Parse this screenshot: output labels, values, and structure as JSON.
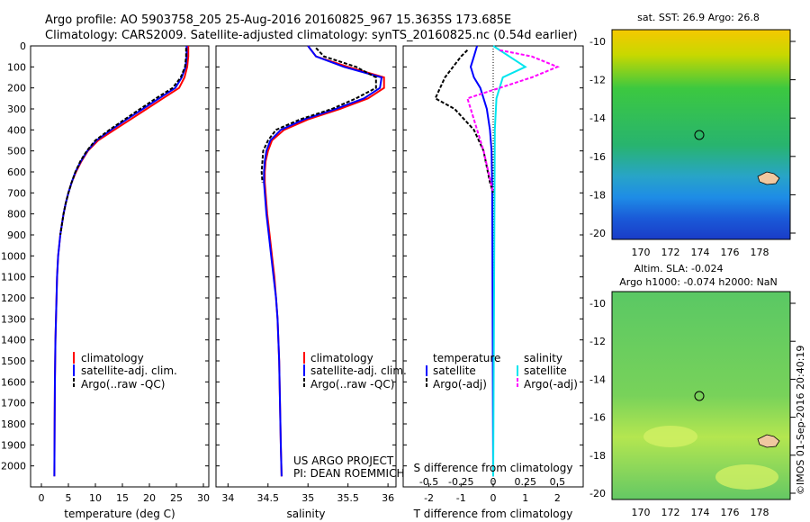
{
  "header": {
    "line1": "Argo profile: AO 5903758_205 25-Aug-2016 20160825_967 15.3635S 173.685E",
    "line2": "Climatology: CARS2009. Satellite-adjusted climatology: synTS_20160825.nc (0.54d earlier)"
  },
  "panels": {
    "temperature": {
      "xlabel": "temperature (deg C)",
      "xticks": [
        "0",
        "5",
        "10",
        "15",
        "20",
        "25",
        "30"
      ],
      "legend": [
        "climatology",
        "satellite-adj. clim.",
        "Argo(..raw -QC)"
      ]
    },
    "salinity": {
      "xlabel": "salinity",
      "xticks": [
        "34",
        "34.5",
        "35",
        "35.5",
        "36"
      ],
      "legend": [
        "climatology",
        "satellite-adj. clim.",
        "Argo(..raw -QC)"
      ],
      "note1": "US ARGO PROJECT",
      "note2": "PI: DEAN ROEMMICH"
    },
    "difference": {
      "xlabel": "T difference from climatology",
      "xlabel_top": "S difference from climatology",
      "xticks_T": [
        "-2",
        "-1",
        "0",
        "1",
        "2"
      ],
      "xticks_S": [
        "-0.5",
        "-0.25",
        "0",
        "0.25",
        "0.5"
      ],
      "legend_t_title": "temperature",
      "legend_s_title": "salinity",
      "legend_t": [
        "satellite",
        "Argo(-adj)"
      ],
      "legend_s": [
        "satellite",
        "Argo(-adj)"
      ]
    },
    "sst_map": {
      "title": "sat. SST: 26.9 Argo: 26.8",
      "yticks": [
        "-10",
        "-12",
        "-14",
        "-16",
        "-18",
        "-20"
      ],
      "xticks": [
        "170",
        "172",
        "174",
        "176",
        "178"
      ]
    },
    "sla_map": {
      "title1": "Altim. SLA: -0.024",
      "title2": "Argo h1000: -0.074 h2000: NaN",
      "yticks": [
        "-10",
        "-12",
        "-14",
        "-16",
        "-18",
        "-20"
      ],
      "xticks": [
        "170",
        "172",
        "174",
        "176",
        "178"
      ]
    }
  },
  "depth_ticks": [
    "0",
    "100",
    "200",
    "300",
    "400",
    "500",
    "600",
    "700",
    "800",
    "900",
    "1000",
    "1100",
    "1200",
    "1300",
    "1400",
    "1500",
    "1600",
    "1700",
    "1800",
    "1900",
    "2000"
  ],
  "credit": "©IMOS 01-Sep-2016 20:40:19",
  "colors": {
    "climatology": "#ff0000",
    "satellite": "#0000ff",
    "argo": "#000000",
    "sal_satellite": "#00e5ee",
    "sal_argo": "#ff00ff"
  },
  "chart_data": [
    {
      "type": "line",
      "xlabel": "temperature (deg C)",
      "ylabel": "",
      "xlim": [
        -2,
        31
      ],
      "ylim": [
        2100,
        0
      ],
      "series": [
        {
          "name": "climatology",
          "color": "#ff0000",
          "x": [
            27.2,
            27.2,
            27.0,
            26.5,
            25.5,
            22.5,
            19.5,
            16.5,
            13.5,
            10.5,
            8.6,
            7.4,
            6.4,
            5.6,
            5.0,
            4.5,
            4.1,
            3.8,
            3.5,
            3.3,
            3.1,
            2.9,
            2.8,
            2.7,
            2.6,
            2.55,
            2.5,
            2.45,
            2.4
          ],
          "y": [
            0,
            50,
            100,
            150,
            200,
            250,
            300,
            350,
            400,
            450,
            500,
            550,
            600,
            650,
            700,
            750,
            800,
            850,
            900,
            950,
            1000,
            1100,
            1200,
            1300,
            1400,
            1500,
            1600,
            1800,
            2050
          ]
        },
        {
          "name": "satellite-adj. clim.",
          "color": "#0000ff",
          "x": [
            26.9,
            26.9,
            26.7,
            26.0,
            24.8,
            21.8,
            18.8,
            15.8,
            12.9,
            10.2,
            8.5,
            7.3,
            6.3,
            5.6,
            5.0,
            4.5,
            4.1,
            3.8,
            3.5,
            3.3,
            3.1,
            2.9,
            2.8,
            2.7,
            2.6,
            2.55,
            2.5,
            2.45,
            2.4
          ],
          "y": [
            0,
            50,
            100,
            150,
            200,
            250,
            300,
            350,
            400,
            450,
            500,
            550,
            600,
            650,
            700,
            750,
            800,
            850,
            900,
            950,
            1000,
            1100,
            1200,
            1300,
            1400,
            1500,
            1600,
            1800,
            2050
          ]
        },
        {
          "name": "Argo(..raw -QC)",
          "color": "#000000",
          "x": [
            26.8,
            26.8,
            26.6,
            25.8,
            24.3,
            21.2,
            18.3,
            15.4,
            12.6,
            10.0,
            8.4,
            7.2,
            6.3,
            5.6,
            5.0,
            4.5,
            4.1,
            3.8,
            3.5
          ],
          "y": [
            10,
            50,
            100,
            150,
            200,
            250,
            300,
            350,
            400,
            450,
            500,
            550,
            600,
            650,
            700,
            750,
            800,
            850,
            900
          ]
        }
      ]
    },
    {
      "type": "line",
      "xlabel": "salinity",
      "ylabel": "",
      "xlim": [
        33.85,
        36.1
      ],
      "ylim": [
        2100,
        0
      ],
      "series": [
        {
          "name": "climatology",
          "color": "#ff0000",
          "x": [
            35.0,
            35.1,
            35.5,
            35.95,
            35.95,
            35.75,
            35.4,
            35.0,
            34.7,
            34.55,
            34.5,
            34.47,
            34.46,
            34.46,
            34.47,
            34.49,
            34.52,
            34.55,
            34.58,
            34.6,
            34.62,
            34.64,
            34.65,
            34.66,
            34.67
          ],
          "y": [
            0,
            50,
            100,
            150,
            200,
            250,
            300,
            350,
            400,
            450,
            500,
            550,
            600,
            650,
            700,
            800,
            900,
            1000,
            1100,
            1200,
            1300,
            1500,
            1700,
            1900,
            2050
          ]
        },
        {
          "name": "satellite-adj. clim.",
          "color": "#0000ff",
          "x": [
            35.0,
            35.1,
            35.45,
            35.92,
            35.9,
            35.7,
            35.35,
            34.95,
            34.66,
            34.53,
            34.48,
            34.46,
            34.45,
            34.45,
            34.46,
            34.48,
            34.51,
            34.54,
            34.57,
            34.6,
            34.62,
            34.64,
            34.65,
            34.66,
            34.67
          ],
          "y": [
            0,
            50,
            100,
            150,
            200,
            250,
            300,
            350,
            400,
            450,
            500,
            550,
            600,
            650,
            700,
            800,
            900,
            1000,
            1100,
            1200,
            1300,
            1500,
            1700,
            1900,
            2050
          ]
        },
        {
          "name": "Argo(..raw -QC)",
          "color": "#000000",
          "x": [
            35.1,
            35.2,
            35.6,
            35.85,
            35.85,
            35.6,
            35.3,
            34.9,
            34.6,
            34.5,
            34.44,
            34.43,
            34.42,
            34.43
          ],
          "y": [
            10,
            50,
            100,
            150,
            200,
            250,
            300,
            350,
            400,
            450,
            500,
            550,
            600,
            650
          ]
        }
      ]
    },
    {
      "type": "line",
      "xlabel": "T difference from climatology",
      "ylabel": "",
      "xlim": [
        -2.8,
        2.8
      ],
      "ylim": [
        2100,
        0
      ],
      "series": [
        {
          "name": "satellite",
          "color": "#0000ff",
          "x": [
            -0.5,
            -0.6,
            -0.7,
            -0.6,
            -0.4,
            -0.2,
            -0.1,
            -0.05,
            -0.03,
            0
          ],
          "y": [
            0,
            50,
            100,
            150,
            200,
            300,
            400,
            500,
            700,
            2050
          ]
        },
        {
          "name": "Argo(-adj)",
          "color": "#000000",
          "x": [
            -0.8,
            -1.0,
            -1.5,
            -1.8,
            -1.2,
            -0.6,
            -0.3,
            -0.1,
            0
          ],
          "y": [
            20,
            50,
            150,
            250,
            300,
            400,
            500,
            650,
            700
          ]
        },
        {
          "name": "salinity satellite",
          "color": "#00e5ee",
          "x": [
            0,
            0.5,
            1.0,
            0.3,
            0.1,
            0.05,
            0
          ],
          "y": [
            0,
            50,
            100,
            150,
            250,
            400,
            2050
          ]
        },
        {
          "name": "salinity Argo(-adj)",
          "color": "#ff00ff",
          "x": [
            0.2,
            1.2,
            2.0,
            1.2,
            -0.8,
            -0.6,
            -0.3,
            0
          ],
          "y": [
            20,
            50,
            100,
            150,
            250,
            350,
            500,
            700
          ]
        }
      ]
    }
  ]
}
